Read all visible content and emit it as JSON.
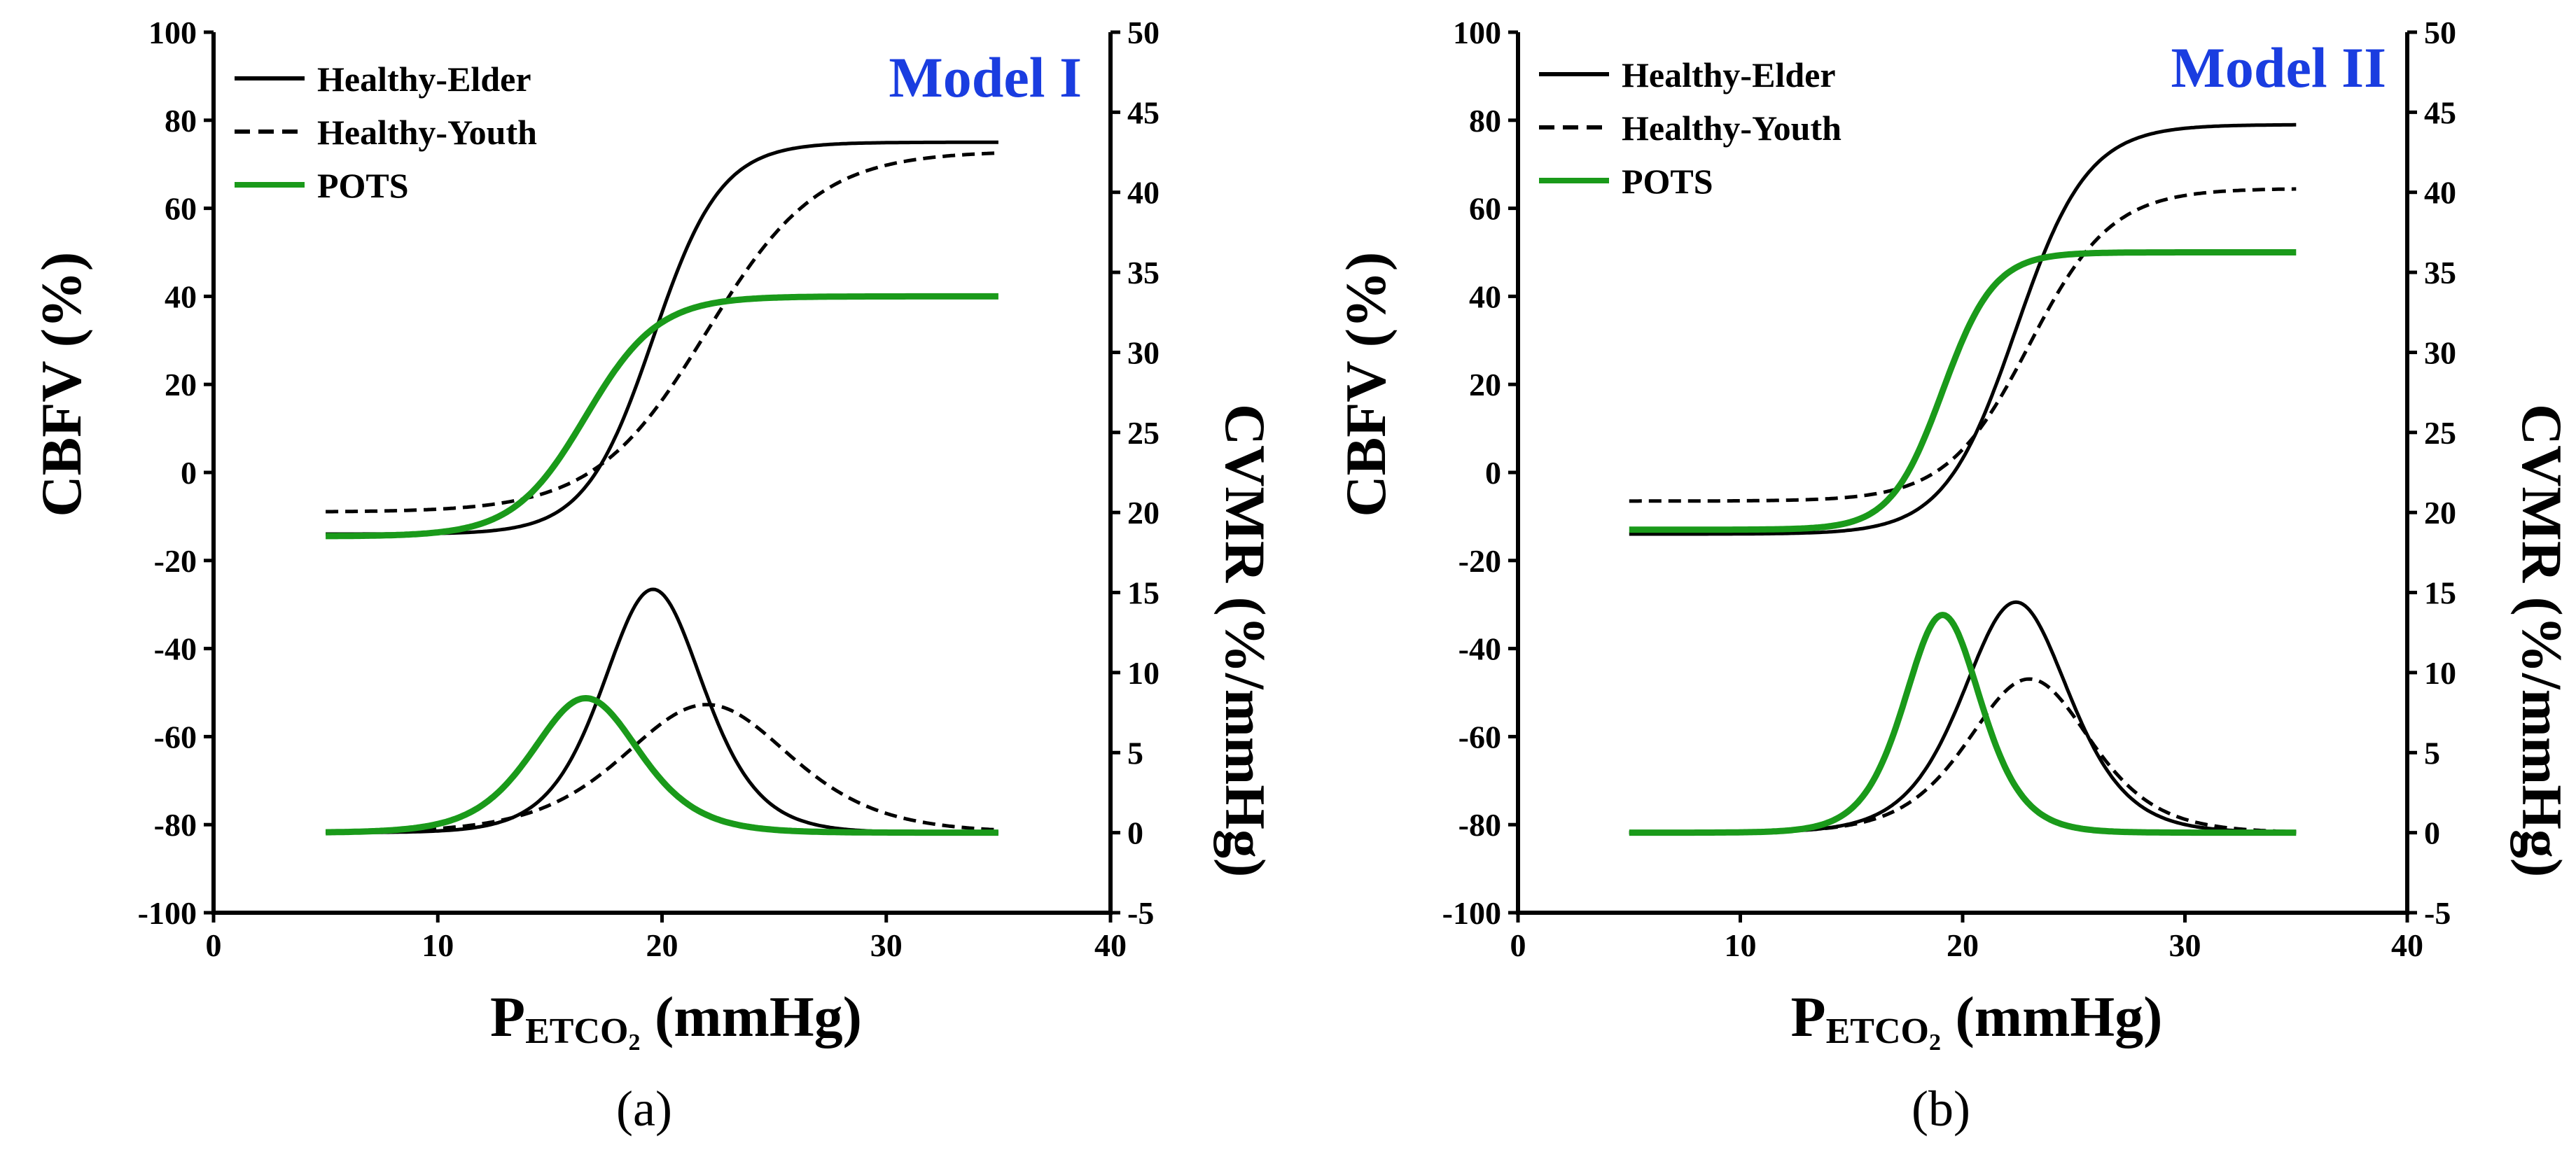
{
  "figure_labels": [
    "(a)",
    "(b)"
  ],
  "colors": {
    "elder": "#000000",
    "youth": "#000000",
    "pots": "#1a9a1a",
    "model_title": "#1a3de0",
    "axis": "#000000"
  },
  "chart_data": [
    {
      "type": "line",
      "panel_label": "(a)",
      "title": "Model  I",
      "xlabel_main": "P",
      "xlabel_sub": "ETCO",
      "xlabel_subsub": "2",
      "xlabel_unit": "(mmHg)",
      "ylabel_left": "CBFV  (%)",
      "ylabel_right": "CVMR  (%/mmHg)",
      "xlim": [
        0,
        40
      ],
      "ylim_left": [
        -100,
        100
      ],
      "ylim_right": [
        -5,
        50
      ],
      "xticks": [
        0,
        10,
        20,
        30,
        40
      ],
      "yticks_left": [
        -100,
        -80,
        -60,
        -40,
        -20,
        0,
        20,
        40,
        60,
        80,
        100
      ],
      "yticks_right": [
        -5,
        0,
        5,
        10,
        15,
        20,
        25,
        30,
        35,
        40,
        45,
        50
      ],
      "legend": [
        {
          "name": "Healthy-Elder",
          "style": "solid",
          "color": "#000000"
        },
        {
          "name": "Healthy-Youth",
          "style": "dashed",
          "color": "#000000"
        },
        {
          "name": "POTS",
          "style": "solid",
          "color": "#1a9a1a"
        }
      ],
      "x_range": [
        5,
        35
      ],
      "series": [
        {
          "name": "Healthy-Elder",
          "axis": "left",
          "kind": "sigmoid",
          "bottom": -14,
          "top": 75,
          "x0": 19.6,
          "k": 0.66,
          "style": "solid",
          "color": "#000000",
          "values_at_x": {
            "5": -14,
            "10": -13.7,
            "15": -9,
            "19.6": 30.5,
            "25": 73,
            "30": 75,
            "35": 75
          }
        },
        {
          "name": "Healthy-Youth",
          "axis": "left",
          "kind": "sigmoid",
          "bottom": -9,
          "top": 73,
          "x0": 22.0,
          "k": 0.4,
          "style": "dashed",
          "color": "#000000",
          "values_at_x": {
            "5": -8.9,
            "10": -7,
            "15": 1,
            "20": 23,
            "25": 53,
            "30": 69,
            "35": 72
          }
        },
        {
          "name": "POTS",
          "axis": "left",
          "kind": "sigmoid",
          "bottom": -14.5,
          "top": 40,
          "x0": 16.6,
          "k": 0.62,
          "style": "solid",
          "color": "#1a9a1a",
          "values_at_x": {
            "5": -14.5,
            "10": -13.6,
            "15": 0.5,
            "16.6": 12.7,
            "20": 35,
            "25": 39.7,
            "35": 40
          }
        },
        {
          "name": "Healthy-Elder",
          "axis": "right",
          "kind": "peak",
          "peak_x": 19.6,
          "peak_y": 15.2,
          "k": 0.66,
          "style": "solid",
          "color": "#000000",
          "values_at_x": {
            "5": 0,
            "15": 1.2,
            "19.6": 15.2,
            "25": 0.6,
            "35": 0
          }
        },
        {
          "name": "Healthy-Youth",
          "axis": "right",
          "kind": "peak",
          "peak_x": 22.0,
          "peak_y": 8.0,
          "k": 0.4,
          "style": "dashed",
          "color": "#000000",
          "values_at_x": {
            "5": 0,
            "15": 1.8,
            "22": 8.0,
            "30": 1.1,
            "35": 0.2
          }
        },
        {
          "name": "POTS",
          "axis": "right",
          "kind": "peak",
          "peak_x": 16.6,
          "peak_y": 8.4,
          "k": 0.62,
          "style": "solid",
          "color": "#1a9a1a",
          "values_at_x": {
            "5": 0,
            "12": 1.3,
            "16.6": 8.4,
            "22": 0.3,
            "35": 0
          }
        }
      ]
    },
    {
      "type": "line",
      "panel_label": "(b)",
      "title": "Model  II",
      "xlabel_main": "P",
      "xlabel_sub": "ETCO",
      "xlabel_subsub": "2",
      "xlabel_unit": "(mmHg)",
      "ylabel_left": "CBFV  (%)",
      "ylabel_right": "CVMR  (%/mmHg)",
      "xlim": [
        0,
        40
      ],
      "ylim_left": [
        -100,
        100
      ],
      "ylim_right": [
        -5,
        50
      ],
      "xticks": [
        0,
        10,
        20,
        30,
        40
      ],
      "yticks_left": [
        -100,
        -80,
        -60,
        -40,
        -20,
        0,
        20,
        40,
        60,
        80,
        100
      ],
      "yticks_right": [
        -5,
        0,
        5,
        10,
        15,
        20,
        25,
        30,
        35,
        40,
        45,
        50
      ],
      "legend": [
        {
          "name": "Healthy-Elder",
          "style": "solid",
          "color": "#000000"
        },
        {
          "name": "Healthy-Youth",
          "style": "dashed",
          "color": "#000000"
        },
        {
          "name": "POTS",
          "style": "solid",
          "color": "#1a9a1a"
        }
      ],
      "x_range": [
        5,
        35
      ],
      "series": [
        {
          "name": "Healthy-Elder",
          "axis": "left",
          "kind": "sigmoid",
          "bottom": -14,
          "top": 79,
          "x0": 22.4,
          "k": 0.62,
          "style": "solid",
          "color": "#000000",
          "values_at_x": {
            "5": -14,
            "15": -13.1,
            "22.4": 32.5,
            "30": 78.2,
            "35": 79
          }
        },
        {
          "name": "Healthy-Youth",
          "axis": "left",
          "kind": "sigmoid",
          "bottom": -6.5,
          "top": 64.5,
          "x0": 23.0,
          "k": 0.54,
          "style": "dashed",
          "color": "#000000",
          "values_at_x": {
            "5": -6.5,
            "15": -5.6,
            "23": 29,
            "30": 63,
            "35": 64.5
          }
        },
        {
          "name": "POTS",
          "axis": "left",
          "kind": "sigmoid",
          "bottom": -13,
          "top": 50,
          "x0": 19.1,
          "k": 0.86,
          "style": "solid",
          "color": "#1a9a1a",
          "values_at_x": {
            "5": -13,
            "15": -11.4,
            "19.1": 18.5,
            "25": 49.7,
            "35": 50
          }
        },
        {
          "name": "Healthy-Elder",
          "axis": "right",
          "kind": "peak",
          "peak_x": 22.4,
          "peak_y": 14.4,
          "k": 0.62,
          "style": "solid",
          "color": "#000000",
          "values_at_x": {
            "5": 0,
            "18": 2.6,
            "22.4": 14.4,
            "27": 2.0,
            "35": 0
          }
        },
        {
          "name": "Healthy-Youth",
          "axis": "right",
          "kind": "peak",
          "peak_x": 23.0,
          "peak_y": 9.6,
          "k": 0.54,
          "style": "dashed",
          "color": "#000000",
          "values_at_x": {
            "5": 0,
            "18": 2.2,
            "23": 9.6,
            "28": 2.2,
            "35": 0
          }
        },
        {
          "name": "POTS",
          "axis": "right",
          "kind": "peak",
          "peak_x": 19.1,
          "peak_y": 13.6,
          "k": 0.86,
          "style": "solid",
          "color": "#1a9a1a",
          "values_at_x": {
            "5": 0,
            "16": 1.7,
            "19.1": 13.6,
            "22.5": 0.9,
            "35": 0
          }
        }
      ]
    }
  ]
}
